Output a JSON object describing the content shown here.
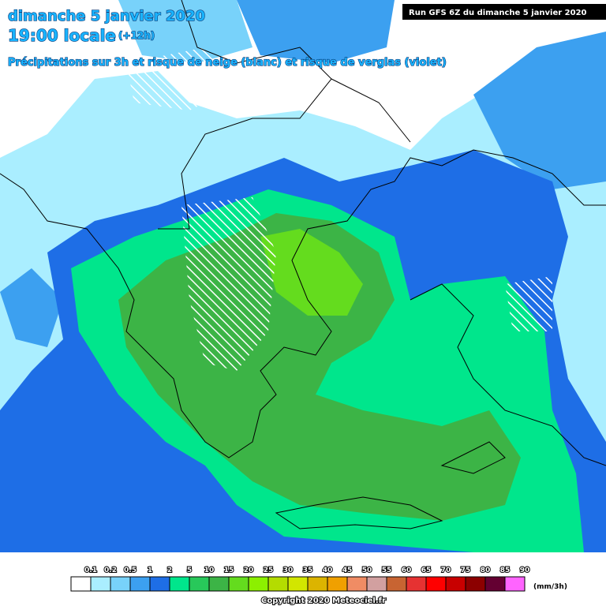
{
  "header": {
    "date": "dimanche 5 janvier 2020",
    "time": "19:00 locale",
    "offset": "(+12h)",
    "subtitle": "Précipitations sur 3h et risque de neige (blanc) et risque de verglas (violet)",
    "run": "Run GFS 6Z du dimanche 5 janvier 2020"
  },
  "legend": {
    "unit": "(mm/3h)",
    "items": [
      {
        "label": "0.1",
        "color": "#ffffff"
      },
      {
        "label": "0.2",
        "color": "#aaeeff"
      },
      {
        "label": "0.5",
        "color": "#78d2fa"
      },
      {
        "label": "1",
        "color": "#3ca0f0"
      },
      {
        "label": "2",
        "color": "#1e6ee6"
      },
      {
        "label": "5",
        "color": "#00e68c"
      },
      {
        "label": "10",
        "color": "#28c85a"
      },
      {
        "label": "15",
        "color": "#3cb446"
      },
      {
        "label": "20",
        "color": "#64dc1e"
      },
      {
        "label": "25",
        "color": "#8cf000"
      },
      {
        "label": "30",
        "color": "#b4dc00"
      },
      {
        "label": "35",
        "color": "#d2e600"
      },
      {
        "label": "40",
        "color": "#dcb400"
      },
      {
        "label": "45",
        "color": "#f0a000"
      },
      {
        "label": "50",
        "color": "#f08c64"
      },
      {
        "label": "55",
        "color": "#d2a0a0"
      },
      {
        "label": "60",
        "color": "#c86432"
      },
      {
        "label": "65",
        "color": "#e63232"
      },
      {
        "label": "70",
        "color": "#ff0000"
      },
      {
        "label": "75",
        "color": "#c80000"
      },
      {
        "label": "80",
        "color": "#8c0000"
      },
      {
        "label": "85",
        "color": "#640032"
      },
      {
        "label": "90",
        "color": "#ff64ff"
      }
    ]
  },
  "footer": {
    "copyright": "Copyright 2020 Meteociel.fr"
  }
}
